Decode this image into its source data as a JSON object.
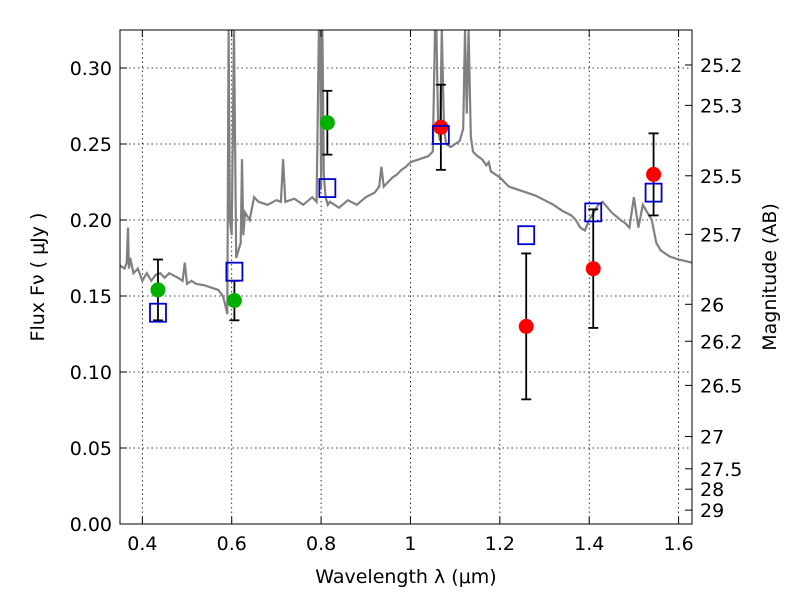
{
  "chart_data": {
    "type": "scatter",
    "xlabel": "Wavelength  λ (μm)",
    "ylabel": "Flux  Fν  ( μJy )",
    "y2label": "Magnitude (AB)",
    "xlim": [
      0.35,
      1.63
    ],
    "ylim": [
      0.0,
      0.325
    ],
    "grid": true,
    "x_ticks": [
      "0.4",
      "0.6",
      "0.8",
      "1",
      "1.2",
      "1.4",
      "1.6"
    ],
    "x_tick_values": [
      0.4,
      0.6,
      0.8,
      1.0,
      1.2,
      1.4,
      1.6
    ],
    "y_ticks": [
      "0.00",
      "0.05",
      "0.10",
      "0.15",
      "0.20",
      "0.25",
      "0.30"
    ],
    "y_tick_values": [
      0.0,
      0.05,
      0.1,
      0.15,
      0.2,
      0.25,
      0.3
    ],
    "mag_ticks": [
      "25.2",
      "25.3",
      "25.5",
      "25.7",
      "26",
      "26.2",
      "26.5",
      "27",
      "27.5",
      "28",
      "29"
    ],
    "mag_tick_values": [
      25.2,
      25.3,
      25.5,
      25.7,
      26.0,
      26.2,
      26.5,
      27.0,
      27.5,
      28.0,
      29.0
    ],
    "colors": {
      "green": "#00b000",
      "red": "#ff0000",
      "model_box": "#0000cc",
      "spectrum": "#808080"
    },
    "observed_points": [
      {
        "x": 0.435,
        "y": 0.154,
        "err": 0.02,
        "color": "green"
      },
      {
        "x": 0.606,
        "y": 0.147,
        "err": 0.013,
        "color": "green"
      },
      {
        "x": 0.814,
        "y": 0.264,
        "err": 0.021,
        "color": "green"
      },
      {
        "x": 1.068,
        "y": 0.261,
        "err": 0.028,
        "color": "red"
      },
      {
        "x": 1.259,
        "y": 0.13,
        "err": 0.048,
        "color": "red"
      },
      {
        "x": 1.409,
        "y": 0.168,
        "err": 0.039,
        "color": "red"
      },
      {
        "x": 1.544,
        "y": 0.23,
        "err": 0.027,
        "color": "red"
      }
    ],
    "model_points": [
      {
        "x": 0.435,
        "y": 0.139
      },
      {
        "x": 0.606,
        "y": 0.166
      },
      {
        "x": 0.814,
        "y": 0.221
      },
      {
        "x": 1.068,
        "y": 0.256
      },
      {
        "x": 1.259,
        "y": 0.19
      },
      {
        "x": 1.409,
        "y": 0.205
      },
      {
        "x": 1.544,
        "y": 0.218
      }
    ],
    "spectrum": {
      "x": [
        0.35,
        0.36,
        0.365,
        0.368,
        0.37,
        0.373,
        0.38,
        0.39,
        0.4,
        0.41,
        0.42,
        0.43,
        0.44,
        0.45,
        0.46,
        0.48,
        0.49,
        0.495,
        0.5,
        0.51,
        0.52,
        0.54,
        0.56,
        0.57,
        0.58,
        0.585,
        0.59,
        0.593,
        0.596,
        0.6,
        0.605,
        0.61,
        0.62,
        0.623,
        0.626,
        0.63,
        0.64,
        0.65,
        0.66,
        0.68,
        0.7,
        0.71,
        0.715,
        0.72,
        0.74,
        0.76,
        0.78,
        0.79,
        0.795,
        0.798,
        0.8,
        0.803,
        0.806,
        0.81,
        0.815,
        0.82,
        0.84,
        0.86,
        0.88,
        0.9,
        0.92,
        0.93,
        0.935,
        0.94,
        0.95,
        0.96,
        0.97,
        0.98,
        0.99,
        1.0,
        1.02,
        1.04,
        1.05,
        1.055,
        1.058,
        1.062,
        1.066,
        1.07,
        1.075,
        1.08,
        1.09,
        1.1,
        1.11,
        1.118,
        1.122,
        1.126,
        1.13,
        1.135,
        1.14,
        1.15,
        1.16,
        1.17,
        1.175,
        1.18,
        1.2,
        1.22,
        1.24,
        1.26,
        1.28,
        1.3,
        1.32,
        1.34,
        1.36,
        1.37,
        1.38,
        1.39,
        1.4,
        1.41,
        1.42,
        1.43,
        1.45,
        1.47,
        1.48,
        1.49,
        1.5,
        1.51,
        1.52,
        1.53,
        1.54,
        1.55,
        1.56,
        1.58,
        1.6,
        1.63
      ],
      "y": [
        0.17,
        0.168,
        0.172,
        0.195,
        0.168,
        0.175,
        0.165,
        0.168,
        0.16,
        0.165,
        0.16,
        0.164,
        0.165,
        0.162,
        0.165,
        0.162,
        0.16,
        0.172,
        0.158,
        0.16,
        0.158,
        0.157,
        0.155,
        0.154,
        0.15,
        0.145,
        0.138,
        0.325,
        0.2,
        0.19,
        0.325,
        0.175,
        0.185,
        0.24,
        0.19,
        0.205,
        0.2,
        0.215,
        0.212,
        0.21,
        0.213,
        0.212,
        0.24,
        0.212,
        0.214,
        0.21,
        0.215,
        0.212,
        0.325,
        0.325,
        0.22,
        0.325,
        0.23,
        0.215,
        0.21,
        0.212,
        0.208,
        0.213,
        0.21,
        0.215,
        0.218,
        0.222,
        0.235,
        0.222,
        0.225,
        0.228,
        0.23,
        0.233,
        0.235,
        0.238,
        0.24,
        0.242,
        0.245,
        0.325,
        0.325,
        0.26,
        0.252,
        0.325,
        0.26,
        0.25,
        0.248,
        0.25,
        0.252,
        0.26,
        0.325,
        0.27,
        0.325,
        0.255,
        0.245,
        0.242,
        0.24,
        0.236,
        0.238,
        0.232,
        0.228,
        0.222,
        0.22,
        0.218,
        0.216,
        0.213,
        0.21,
        0.206,
        0.203,
        0.2,
        0.195,
        0.193,
        0.2,
        0.205,
        0.21,
        0.212,
        0.205,
        0.2,
        0.198,
        0.195,
        0.215,
        0.195,
        0.21,
        0.205,
        0.2,
        0.185,
        0.18,
        0.176,
        0.174,
        0.172
      ]
    }
  }
}
